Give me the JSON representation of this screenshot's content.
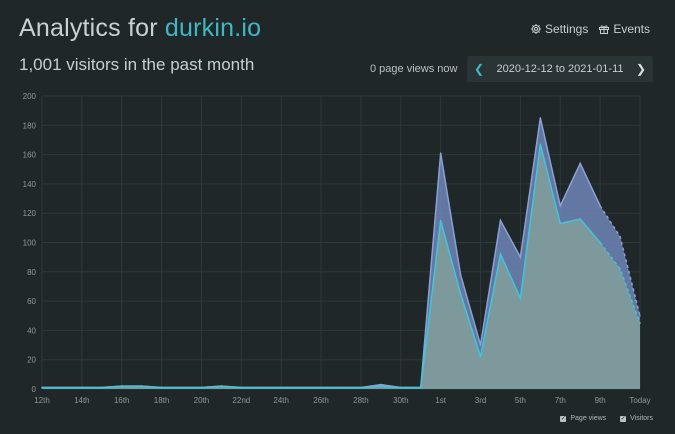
{
  "header": {
    "title_prefix": "Analytics for ",
    "site": "durkin.io",
    "subtitle": "1,001 visitors in the past month"
  },
  "actions": {
    "settings": "Settings",
    "events": "Events"
  },
  "live_views": "0 page views now",
  "date_range": {
    "text": "2020-12-12 to 2021-01-11",
    "prev_icon": "chevron-left-icon",
    "next_icon": "chevron-right-icon"
  },
  "legend": {
    "page_views": "Page views",
    "visitors": "Visitors"
  },
  "colors": {
    "background": "#1f2729",
    "accent": "#43b6c4",
    "page_views_fill": "#6f86b6",
    "visitors_fill": "#7f9b9c",
    "grid": "#2c3a3a"
  },
  "chart_data": {
    "type": "area",
    "title": "",
    "xlabel": "",
    "ylabel": "",
    "ylim": [
      0,
      200
    ],
    "yticks": [
      0,
      20,
      40,
      60,
      80,
      100,
      120,
      140,
      160,
      180,
      200
    ],
    "x_ticks": [
      "12th",
      "14th",
      "16th",
      "18th",
      "20th",
      "22nd",
      "24th",
      "26th",
      "28th",
      "30th",
      "1st",
      "3rd",
      "5th",
      "7th",
      "9th",
      "Today"
    ],
    "x": [
      "12th",
      "13th",
      "14th",
      "15th",
      "16th",
      "17th",
      "18th",
      "19th",
      "20th",
      "21st",
      "22nd",
      "23rd",
      "24th",
      "25th",
      "26th",
      "27th",
      "28th",
      "29th",
      "30th",
      "31st",
      "1st",
      "2nd",
      "3rd",
      "4th",
      "5th",
      "6th",
      "7th",
      "8th",
      "9th",
      "10th",
      "Today"
    ],
    "grid": true,
    "legend_position": "bottom-right",
    "series": [
      {
        "name": "Page views",
        "values": [
          1,
          1,
          1,
          1,
          2,
          2,
          1,
          1,
          1,
          2,
          1,
          1,
          1,
          1,
          1,
          1,
          1,
          3,
          1,
          1,
          161,
          78,
          30,
          115,
          90,
          185,
          125,
          154,
          125,
          104,
          50
        ]
      },
      {
        "name": "Visitors",
        "values": [
          1,
          1,
          1,
          1,
          2,
          2,
          1,
          1,
          1,
          2,
          1,
          1,
          1,
          1,
          1,
          1,
          1,
          2,
          1,
          1,
          115,
          65,
          22,
          92,
          62,
          167,
          113,
          116,
          100,
          82,
          45
        ]
      }
    ]
  }
}
